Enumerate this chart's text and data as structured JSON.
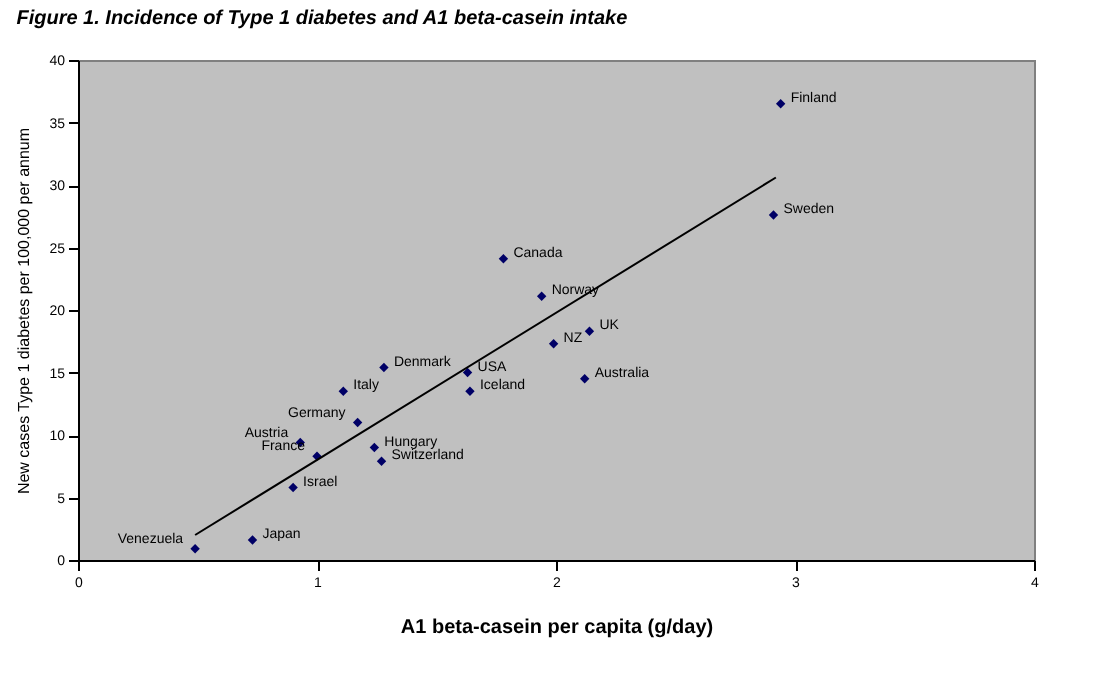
{
  "chart_data": {
    "type": "scatter",
    "title": "Figure 1.  Incidence of Type 1 diabetes and A1 beta-casein  intake",
    "xlabel": "A1 beta-casein per capita (g/day)",
    "ylabel": "New cases Type 1 diabetes per 100,000 per annum",
    "series": [
      {
        "color": "#000066",
        "marker": "diamond",
        "x": [
          2.94,
          2.91,
          1.78,
          1.94,
          2.14,
          1.99,
          2.12,
          1.63,
          1.64,
          1.28,
          1.11,
          1.17,
          1.24,
          1.27,
          0.93,
          1.0,
          0.9,
          0.73,
          0.49
        ],
        "values": [
          36.5,
          27.6,
          24.1,
          21.1,
          18.3,
          17.3,
          14.5,
          15.0,
          13.5,
          15.4,
          13.5,
          11.0,
          9.0,
          7.9,
          9.4,
          8.3,
          5.8,
          1.6,
          0.9
        ]
      },
      {
        "type": "line",
        "color": "#000000",
        "x": [
          0.49,
          2.92
        ],
        "values": [
          2.0,
          30.6
        ]
      }
    ],
    "annotations": [
      {
        "text": "Finland",
        "x": 2.94,
        "y": 36.5
      },
      {
        "text": "Sweden",
        "x": 2.91,
        "y": 27.6
      },
      {
        "text": "Canada",
        "x": 1.78,
        "y": 24.1
      },
      {
        "text": "Norway",
        "x": 1.94,
        "y": 21.1
      },
      {
        "text": "UK",
        "x": 2.14,
        "y": 18.3
      },
      {
        "text": "NZ",
        "x": 1.99,
        "y": 17.3
      },
      {
        "text": "Australia",
        "x": 2.12,
        "y": 14.5
      },
      {
        "text": "USA",
        "x": 1.63,
        "y": 15.0
      },
      {
        "text": "Iceland",
        "x": 1.64,
        "y": 13.5
      },
      {
        "text": "Denmark",
        "x": 1.28,
        "y": 15.4
      },
      {
        "text": "Italy",
        "x": 1.11,
        "y": 13.5
      },
      {
        "text": "Germany",
        "x": 1.17,
        "y": 11.0
      },
      {
        "text": "Hungary",
        "x": 1.24,
        "y": 9.0
      },
      {
        "text": "Switzerland",
        "x": 1.27,
        "y": 7.9
      },
      {
        "text": "Austria",
        "x": 0.93,
        "y": 9.4
      },
      {
        "text": "France",
        "x": 1.0,
        "y": 8.3
      },
      {
        "text": "Israel",
        "x": 0.9,
        "y": 5.8
      },
      {
        "text": "Japan",
        "x": 0.73,
        "y": 1.6
      },
      {
        "text": "Venezuela",
        "x": 0.49,
        "y": 0.9
      }
    ],
    "xlim": [
      0,
      4
    ],
    "xticks": [
      0,
      1,
      2,
      3,
      4
    ],
    "ylim": [
      0,
      40
    ],
    "yticks": [
      0,
      5,
      10,
      15,
      20,
      25,
      30,
      35,
      40
    ],
    "grid": false
  }
}
